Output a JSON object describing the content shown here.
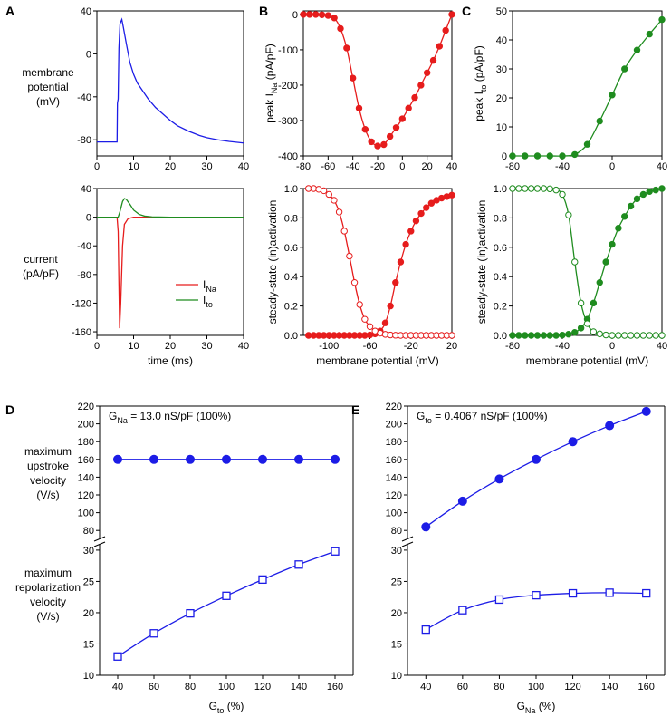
{
  "colors": {
    "blue": "#1c1ce6",
    "red": "#e61c1c",
    "green": "#1f8c1f",
    "axis": "#000000"
  },
  "panel_letters": [
    "A",
    "B",
    "C",
    "D",
    "E"
  ],
  "left_labels": {
    "membrane_potential": [
      "membrane",
      "potential",
      "(mV)"
    ],
    "current": [
      "current",
      "(pA/pF)"
    ],
    "max_upstroke": [
      "maximum",
      "upstroke",
      "velocity",
      "(V/s)"
    ],
    "max_repol": [
      "maximum",
      "repolarization",
      "velocity",
      "(V/s)"
    ]
  },
  "legend": {
    "ina": {
      "main": "I",
      "sub": "Na"
    },
    "ito": {
      "main": "I",
      "sub": "to"
    }
  },
  "chart_data": [
    {
      "id": "A_top",
      "type": "line",
      "title": "",
      "xlabel": "",
      "ylabel": "membrane potential (mV)",
      "xlim": [
        0,
        40
      ],
      "ylim": [
        -95,
        40
      ],
      "xticks": [
        0,
        10,
        20,
        30,
        40
      ],
      "yticks": [
        -80,
        -40,
        0,
        40
      ],
      "series": [
        {
          "name": "Vm",
          "color": "#1c1ce6",
          "x": [
            0,
            5.5,
            5.6,
            5.8,
            6.0,
            6.3,
            6.8,
            7.2,
            8,
            9,
            10,
            11,
            12,
            14,
            16,
            18,
            20,
            22,
            25,
            28,
            30,
            33,
            36,
            40
          ],
          "y": [
            -82,
            -82,
            -46,
            -42,
            5,
            28,
            32,
            25,
            10,
            -8,
            -19,
            -27,
            -32,
            -42,
            -50,
            -56,
            -62,
            -67,
            -72,
            -76,
            -78,
            -80,
            -81.5,
            -83
          ]
        }
      ]
    },
    {
      "id": "A_bottom",
      "type": "line",
      "title": "",
      "xlabel": "time (ms)",
      "ylabel": "current (pA/pF)",
      "xlim": [
        0,
        40
      ],
      "ylim": [
        -165,
        40
      ],
      "xticks": [
        0,
        10,
        20,
        30,
        40
      ],
      "yticks": [
        -160,
        -120,
        -80,
        -40,
        0,
        40
      ],
      "series": [
        {
          "name": "INa",
          "color": "#e61c1c",
          "x": [
            0,
            5.5,
            5.8,
            6.0,
            6.2,
            6.5,
            7.0,
            7.5,
            8.5,
            10,
            40
          ],
          "y": [
            0,
            0,
            -20,
            -90,
            -155,
            -120,
            -40,
            -10,
            -2,
            0,
            0
          ]
        },
        {
          "name": "Ito",
          "color": "#1f8c1f",
          "x": [
            0,
            5.8,
            6.3,
            7.0,
            7.5,
            8.0,
            9.0,
            10.0,
            11.5,
            13.0,
            15.0,
            17.0,
            20.0,
            40
          ],
          "y": [
            0,
            0,
            8,
            22,
            26,
            25,
            18,
            10,
            4,
            1.5,
            0.5,
            0.2,
            0,
            0
          ]
        }
      ]
    },
    {
      "id": "B_top",
      "type": "line",
      "title": "",
      "xlabel": "",
      "ylabel": "peak INa (pA/pF)",
      "xlim": [
        -80,
        40
      ],
      "ylim": [
        -400,
        10
      ],
      "xticks": [
        -80,
        -60,
        -40,
        -20,
        0,
        20,
        40
      ],
      "yticks": [
        -400,
        -300,
        -200,
        -100,
        0
      ],
      "series": [
        {
          "name": "INa peak",
          "color": "#e61c1c",
          "marker": "filled",
          "x": [
            -80,
            -75,
            -70,
            -65,
            -60,
            -55,
            -50,
            -45,
            -40,
            -35,
            -30,
            -25,
            -20,
            -15,
            -10,
            -5,
            0,
            5,
            10,
            15,
            20,
            25,
            30,
            35,
            40
          ],
          "y": [
            0,
            0,
            0,
            -1,
            -3,
            -10,
            -40,
            -95,
            -180,
            -265,
            -325,
            -360,
            -372,
            -368,
            -345,
            -320,
            -295,
            -265,
            -235,
            -200,
            -165,
            -130,
            -90,
            -45,
            0
          ]
        }
      ]
    },
    {
      "id": "B_bottom",
      "type": "line",
      "title": "",
      "xlabel": "membrane potential (mV)",
      "ylabel": "steady-state (in)activation",
      "xlim": [
        -125,
        20
      ],
      "ylim": [
        0,
        1
      ],
      "xticks": [
        -100,
        -60,
        -20,
        20
      ],
      "yticks": [
        0.0,
        0.2,
        0.4,
        0.6,
        0.8,
        1.0
      ],
      "series": [
        {
          "name": "activation",
          "color": "#e61c1c",
          "marker": "filled",
          "x": [
            -120,
            -115,
            -110,
            -105,
            -100,
            -95,
            -90,
            -85,
            -80,
            -75,
            -70,
            -65,
            -60,
            -55,
            -50,
            -45,
            -40,
            -35,
            -30,
            -25,
            -20,
            -15,
            -10,
            -5,
            0,
            5,
            10,
            15,
            20
          ],
          "y": [
            0,
            0,
            0,
            0,
            0,
            0,
            0,
            0,
            0,
            0,
            0,
            0,
            0.003,
            0.01,
            0.03,
            0.085,
            0.2,
            0.36,
            0.5,
            0.62,
            0.71,
            0.78,
            0.83,
            0.87,
            0.9,
            0.92,
            0.935,
            0.945,
            0.955
          ]
        },
        {
          "name": "inactivation",
          "color": "#e61c1c",
          "marker": "open",
          "x": [
            -120,
            -115,
            -110,
            -105,
            -100,
            -95,
            -90,
            -85,
            -80,
            -75,
            -70,
            -65,
            -60,
            -55,
            -50,
            -45,
            -40,
            -35,
            -30,
            -25,
            -20,
            -15,
            -10,
            -5,
            0,
            5,
            10,
            15,
            20
          ],
          "y": [
            1,
            1,
            0.995,
            0.985,
            0.96,
            0.92,
            0.84,
            0.71,
            0.54,
            0.36,
            0.21,
            0.11,
            0.06,
            0.03,
            0.015,
            0.007,
            0.003,
            0.001,
            0,
            0,
            0,
            0,
            0,
            0,
            0,
            0,
            0,
            0,
            0
          ]
        }
      ]
    },
    {
      "id": "C_top",
      "type": "line",
      "title": "",
      "xlabel": "",
      "ylabel": "peak Ito (pA/pF)",
      "xlim": [
        -80,
        40
      ],
      "ylim": [
        0,
        50
      ],
      "xticks": [
        -80,
        -40,
        0,
        40
      ],
      "yticks": [
        0,
        10,
        20,
        30,
        40,
        50
      ],
      "series": [
        {
          "name": "Ito peak",
          "color": "#1f8c1f",
          "marker": "filled",
          "x": [
            -80,
            -70,
            -60,
            -50,
            -40,
            -30,
            -20,
            -10,
            0,
            10,
            20,
            30,
            40
          ],
          "y": [
            0,
            0,
            0,
            0,
            0,
            0.5,
            4,
            12,
            21,
            30,
            36.5,
            42,
            47
          ]
        }
      ]
    },
    {
      "id": "C_bottom",
      "type": "line",
      "title": "",
      "xlabel": "membrane potential (mV)",
      "ylabel": "steady-state (in)activation",
      "xlim": [
        -80,
        40
      ],
      "ylim": [
        0,
        1
      ],
      "xticks": [
        -80,
        -40,
        0,
        40
      ],
      "yticks": [
        0.0,
        0.2,
        0.4,
        0.6,
        0.8,
        1.0
      ],
      "series": [
        {
          "name": "activation",
          "color": "#1f8c1f",
          "marker": "filled",
          "x": [
            -80,
            -75,
            -70,
            -65,
            -60,
            -55,
            -50,
            -45,
            -40,
            -35,
            -30,
            -25,
            -20,
            -15,
            -10,
            -5,
            0,
            5,
            10,
            15,
            20,
            25,
            30,
            35,
            40
          ],
          "y": [
            0,
            0,
            0,
            0,
            0,
            0,
            0,
            0,
            0.002,
            0.008,
            0.02,
            0.05,
            0.11,
            0.22,
            0.36,
            0.5,
            0.62,
            0.73,
            0.81,
            0.88,
            0.93,
            0.96,
            0.98,
            0.99,
            1.0
          ]
        },
        {
          "name": "inactivation",
          "color": "#1f8c1f",
          "marker": "open",
          "x": [
            -80,
            -75,
            -70,
            -65,
            -60,
            -55,
            -50,
            -45,
            -40,
            -35,
            -30,
            -25,
            -20,
            -15,
            -10,
            -5,
            0,
            5,
            10,
            15,
            20,
            25,
            30,
            35,
            40
          ],
          "y": [
            1,
            1,
            1,
            1,
            1,
            1,
            0.998,
            0.99,
            0.96,
            0.82,
            0.5,
            0.22,
            0.08,
            0.025,
            0.01,
            0.003,
            0,
            0,
            0,
            0,
            0,
            0,
            0,
            0,
            0
          ]
        }
      ]
    },
    {
      "id": "D",
      "type": "line",
      "annotation": {
        "main": "G",
        "sub": "Na",
        "rest": " = 13.0 nS/pF (100%)"
      },
      "xlabel": {
        "main": "G",
        "sub": "to",
        "rest": " (%)"
      },
      "x": [
        40,
        60,
        80,
        100,
        120,
        140,
        160
      ],
      "upper": {
        "ylim": [
          70,
          220
        ],
        "yticks": [
          80,
          100,
          120,
          140,
          160,
          180,
          200,
          220
        ],
        "series": [
          {
            "name": "maximum upstroke velocity",
            "color": "#1c1ce6",
            "marker": "filled",
            "values": [
              160,
              160,
              160,
              160,
              160,
              160,
              160
            ]
          }
        ]
      },
      "lower": {
        "ylim": [
          10,
          31
        ],
        "yticks": [
          10,
          15,
          20,
          25,
          30
        ],
        "series": [
          {
            "name": "maximum repolarization velocity",
            "color": "#1c1ce6",
            "marker": "open-square",
            "values": [
              13.0,
              16.7,
              19.9,
              22.7,
              25.3,
              27.7,
              29.8
            ]
          }
        ]
      }
    },
    {
      "id": "E",
      "type": "line",
      "annotation": {
        "main": "G",
        "sub": "to",
        "rest": " = 0.4067 nS/pF (100%)"
      },
      "xlabel": {
        "main": "G",
        "sub": "Na",
        "rest": " (%)"
      },
      "x": [
        40,
        60,
        80,
        100,
        120,
        140,
        160
      ],
      "upper": {
        "ylim": [
          70,
          220
        ],
        "yticks": [
          80,
          100,
          120,
          140,
          160,
          180,
          200,
          220
        ],
        "series": [
          {
            "name": "maximum upstroke velocity",
            "color": "#1c1ce6",
            "marker": "filled",
            "values": [
              84,
              113,
              138,
              160,
              180,
              198,
              214
            ]
          }
        ]
      },
      "lower": {
        "ylim": [
          10,
          31
        ],
        "yticks": [
          10,
          15,
          20,
          25,
          30
        ],
        "series": [
          {
            "name": "maximum repolarization velocity",
            "color": "#1c1ce6",
            "marker": "open-square",
            "values": [
              17.3,
              20.4,
              22.1,
              22.8,
              23.1,
              23.2,
              23.1
            ]
          }
        ]
      }
    }
  ]
}
